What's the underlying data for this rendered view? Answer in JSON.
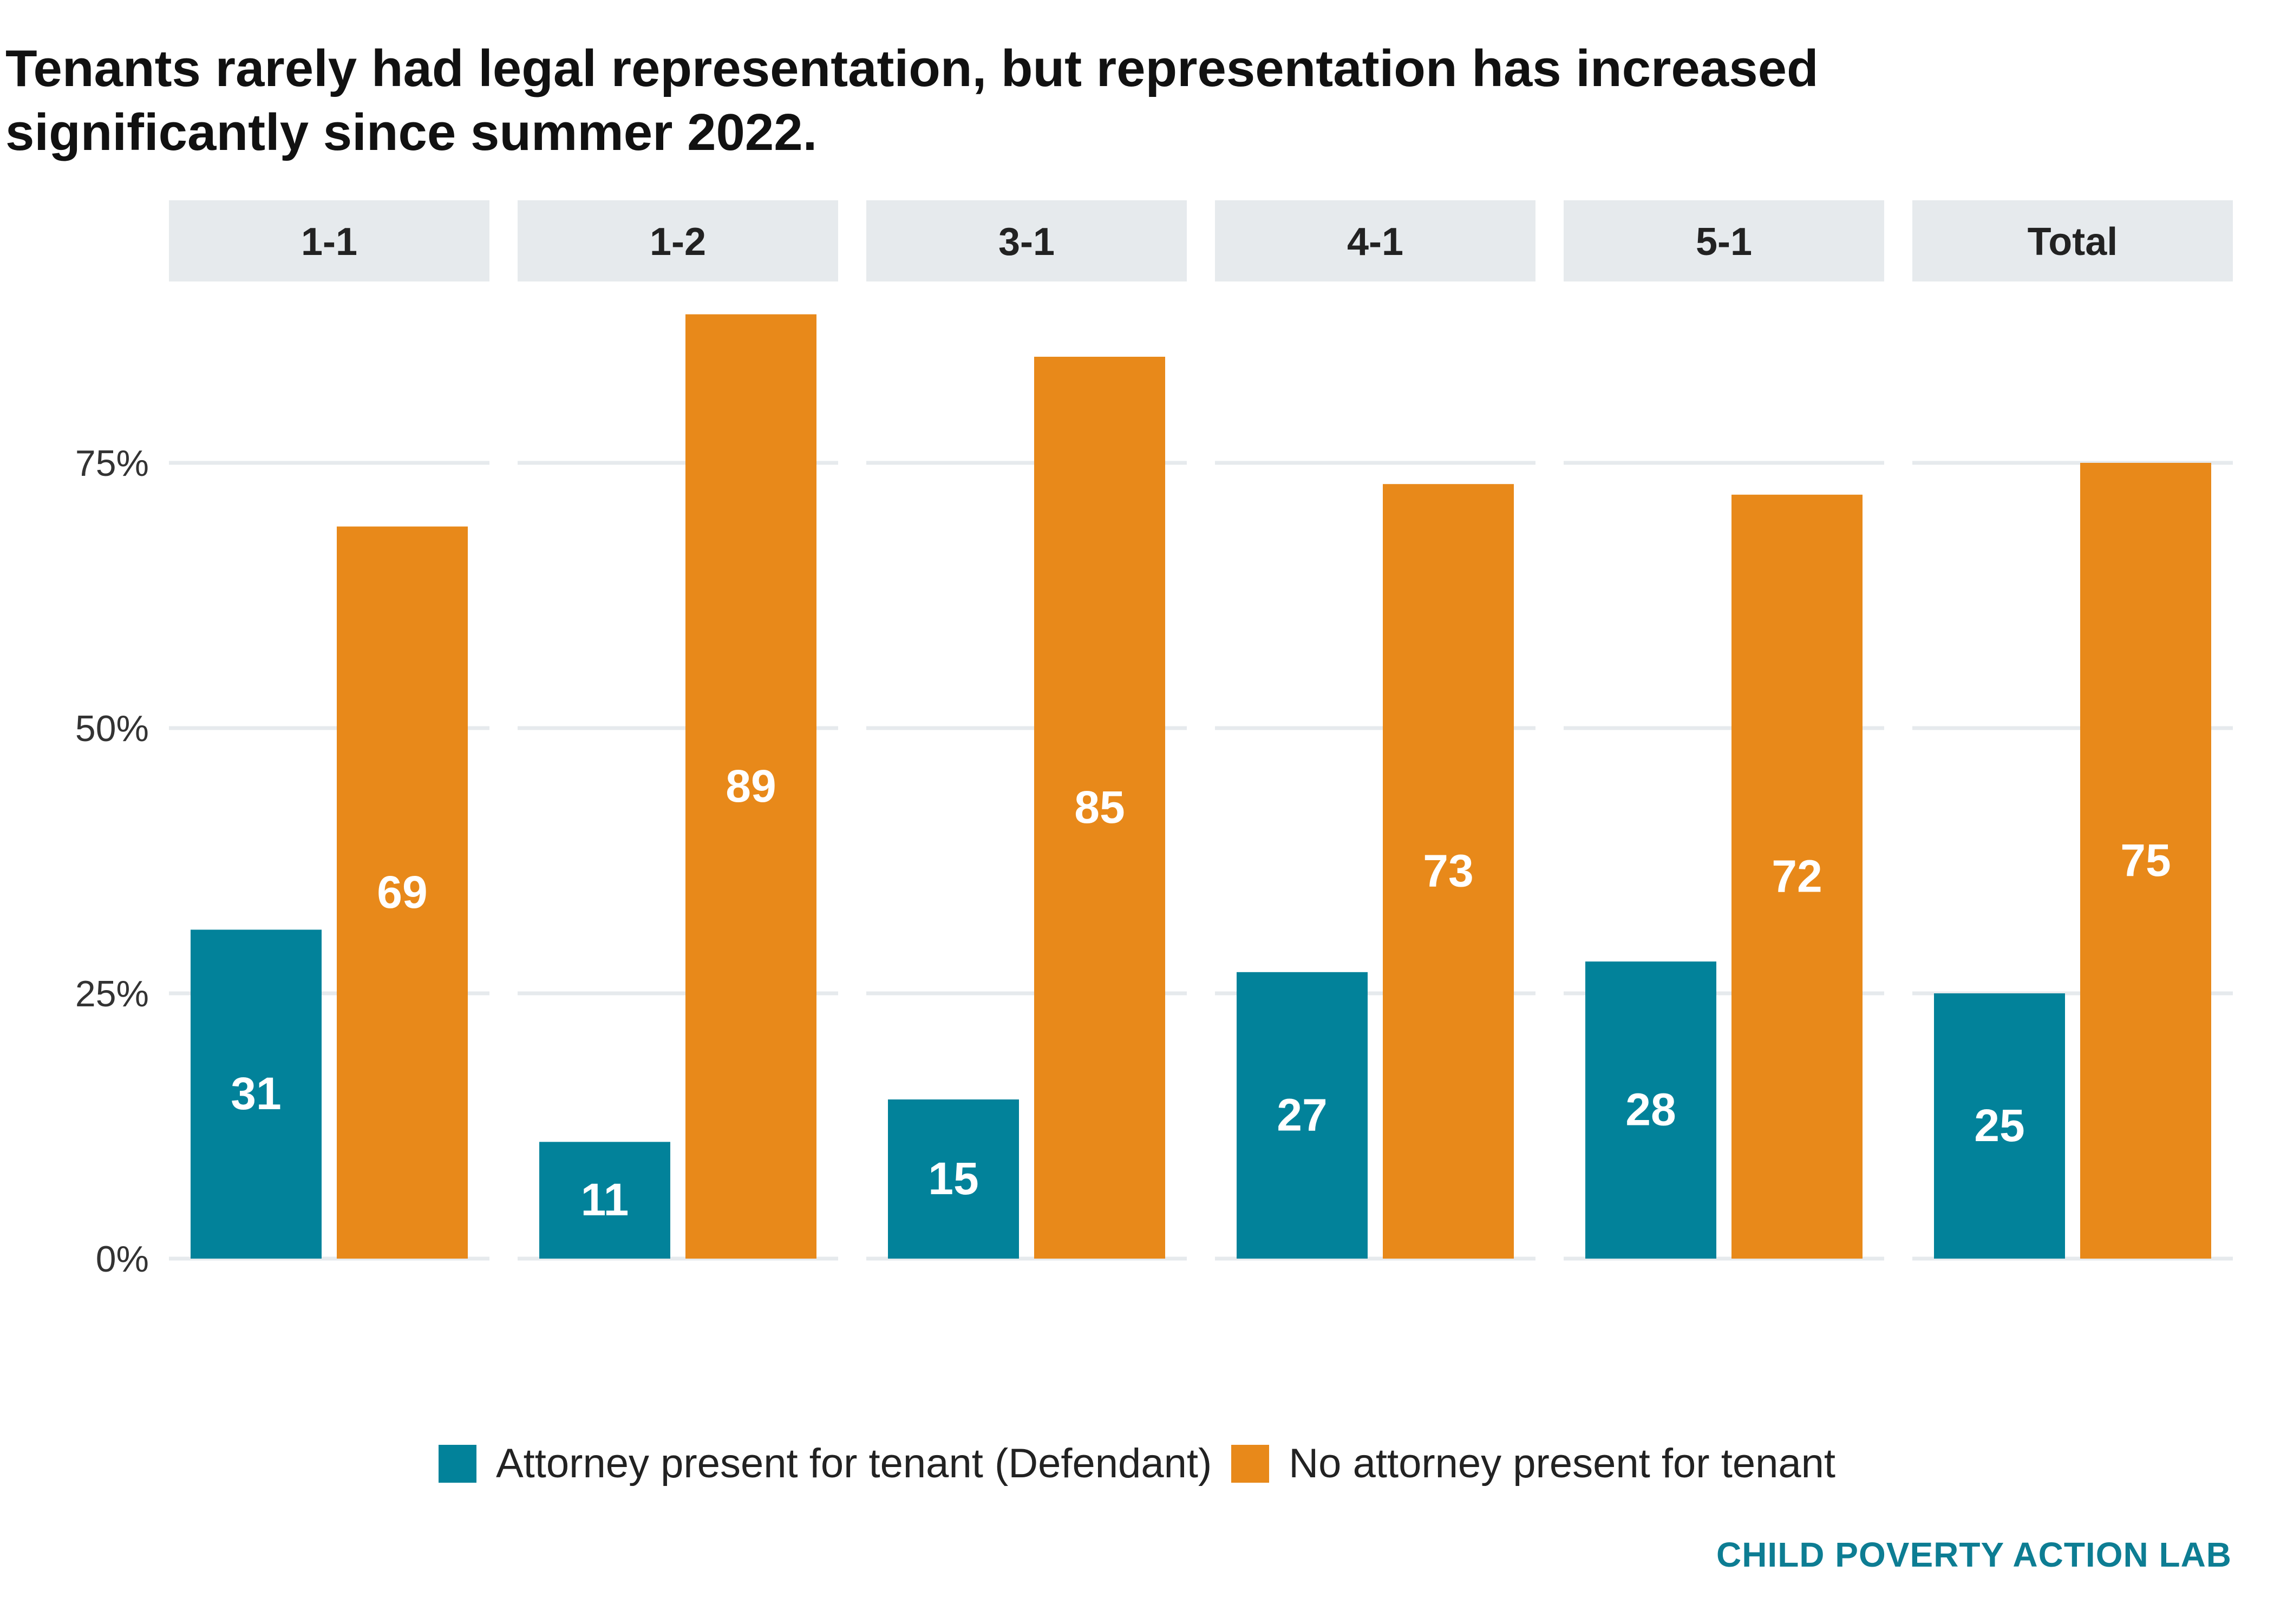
{
  "title_line1": "Tenants rarely had legal representation, but representation has increased",
  "title_line2": "significantly since summer 2022.",
  "source": "CHILD POVERTY ACTION LAB",
  "colors": {
    "attorney": "#02829a",
    "no_attorney": "#e8891a",
    "strip": "#e6eaed",
    "grid": "#e6eaed"
  },
  "chart_data": {
    "type": "bar",
    "facets": [
      "1-1",
      "1-2",
      "3-1",
      "4-1",
      "5-1",
      "Total"
    ],
    "series": [
      {
        "name": "Attorney present for tenant (Defendant)",
        "values": [
          31,
          11,
          15,
          27,
          28,
          25
        ],
        "labels": [
          "31",
          "11",
          "15",
          "27",
          "28",
          "25"
        ]
      },
      {
        "name": "No attorney present for tenant",
        "values": [
          69,
          89,
          85,
          73,
          72,
          75
        ],
        "labels": [
          "69",
          "89",
          "85",
          "73",
          "72",
          "75"
        ]
      }
    ],
    "y_ticks": [
      0,
      25,
      50,
      75
    ],
    "y_tick_labels": [
      "0%",
      "25%",
      "50%",
      "75%"
    ],
    "ylim": [
      0,
      100
    ],
    "grid": true,
    "legend": "bottom"
  }
}
